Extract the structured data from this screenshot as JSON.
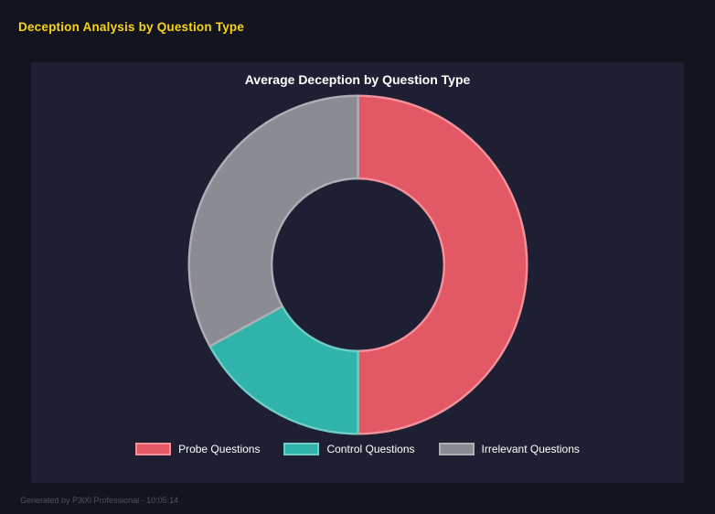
{
  "page": {
    "title": "Deception Analysis by Question Type",
    "footer": "Generated by P300 Professional - 10:05:14"
  },
  "colors": {
    "page_background": "#14141f",
    "panel_background": "#1f1f33",
    "page_title_yellow": "#f6d41b",
    "chart_title_white": "#ffffff",
    "footer_gray": "#4d5160"
  },
  "chart_data": {
    "type": "pie",
    "subtype": "donut",
    "title": "Average Deception by Question Type",
    "labels": [
      "Probe Questions",
      "Control Questions",
      "Irrelevant Questions"
    ],
    "values": [
      50,
      17,
      33
    ],
    "unit": "percent_share",
    "colors": [
      "#e25965",
      "#2fb3aa",
      "#8b8b93"
    ],
    "border_colors": [
      "#f2929a",
      "#6fcdc6",
      "#aeaeb5"
    ],
    "start_angle_deg": 0,
    "direction": "clockwise",
    "inner_radius_ratio": 0.51,
    "legend_position": "bottom",
    "grid": false
  }
}
